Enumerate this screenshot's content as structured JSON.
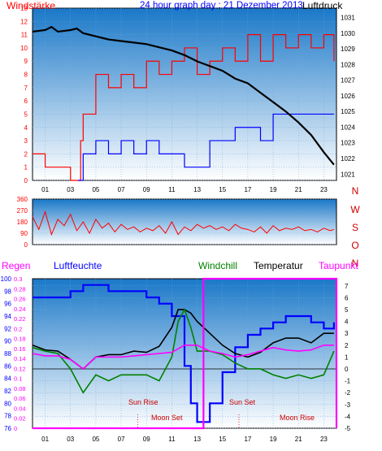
{
  "colors": {
    "wind_speed": "#ff0000",
    "wind_speed_min": "#0000ff",
    "pressure": "#000000",
    "wind_dir": "#ff0000",
    "rain": "#ff00ff",
    "humidity": "#0000ff",
    "windchill": "#008000",
    "temperature": "#000000",
    "dewpoint": "#ff00ff",
    "sky_top": "#1a78c8",
    "sky_bottom": "#ffffff"
  },
  "chart_data": [
    {
      "type": "line",
      "title": "24 hour graph day : 21 Dezember 2013",
      "left_label": "Windstärke",
      "right_label": "Luftdruck",
      "x_ticks": [
        "01",
        "03",
        "05",
        "07",
        "09",
        "11",
        "13",
        "15",
        "17",
        "19",
        "21",
        "23"
      ],
      "xlim": [
        0,
        24
      ],
      "y_left_ticks": [
        "0",
        "1",
        "2",
        "3",
        "4",
        "5",
        "6",
        "7",
        "8",
        "9",
        "10",
        "11",
        "12",
        "13"
      ],
      "ylim_left": [
        0,
        13
      ],
      "y_right_ticks": [
        "1021",
        "1022",
        "1023",
        "1024",
        "1025",
        "1026",
        "1027",
        "1028",
        "1029",
        "1030",
        "1031"
      ],
      "ylim_right": [
        1020.6,
        1031.6
      ],
      "series": [
        {
          "role": "wind_gust",
          "color_key": "wind_speed",
          "axis": "left",
          "x": [
            0,
            1,
            2,
            3,
            3.6,
            3.8,
            4,
            5,
            6,
            7,
            8,
            9,
            10,
            11,
            12,
            13,
            14,
            15,
            16,
            17,
            18,
            19,
            20,
            21,
            22,
            23,
            23.8
          ],
          "y": [
            2,
            1,
            1,
            0,
            0,
            3,
            5,
            8,
            7,
            8,
            7,
            9,
            8,
            9,
            10,
            8,
            9,
            10,
            9,
            11,
            9,
            11,
            10,
            11,
            10,
            11,
            9
          ]
        },
        {
          "role": "wind_avg",
          "color_key": "wind_speed_min",
          "axis": "left",
          "x": [
            3.6,
            4,
            5,
            6,
            7,
            8,
            9,
            10,
            11,
            12,
            13,
            14,
            15,
            16,
            17,
            18,
            19,
            20,
            21,
            22,
            23,
            23.8
          ],
          "y": [
            0,
            2,
            3,
            2,
            3,
            2,
            3,
            2,
            2,
            1,
            1,
            3,
            3,
            4,
            4,
            3,
            5,
            5,
            5,
            5,
            5,
            5
          ]
        },
        {
          "role": "pressure",
          "color_key": "pressure",
          "axis": "right",
          "x": [
            0,
            1,
            1.5,
            2,
            3,
            3.5,
            4,
            5,
            6,
            7,
            8,
            9,
            10,
            11,
            12,
            13,
            14,
            15,
            16,
            17,
            18,
            19,
            20,
            21,
            22,
            23,
            23.8
          ],
          "y": [
            1030.1,
            1030.2,
            1030.4,
            1030.1,
            1030.2,
            1030.3,
            1030.0,
            1029.8,
            1029.6,
            1029.5,
            1029.4,
            1029.3,
            1029.1,
            1028.9,
            1028.6,
            1028.2,
            1027.9,
            1027.6,
            1027.1,
            1026.8,
            1026.2,
            1025.6,
            1025.0,
            1024.3,
            1023.5,
            1022.4,
            1021.6
          ]
        }
      ]
    },
    {
      "type": "line",
      "y_left_ticks": [
        "0",
        "90",
        "180",
        "270",
        "360"
      ],
      "ylim": [
        0,
        360
      ],
      "y_right_labels": [
        "N",
        "W",
        "S",
        "O",
        "N"
      ],
      "x_ticks": [],
      "series": [
        {
          "role": "wind_direction",
          "color_key": "wind_dir",
          "x": [
            0,
            0.5,
            1,
            1.5,
            2,
            2.5,
            3,
            3.5,
            4,
            4.5,
            5,
            5.5,
            6,
            6.5,
            7,
            7.5,
            8,
            8.5,
            9,
            9.5,
            10,
            10.5,
            11,
            11.5,
            12,
            12.5,
            13,
            13.5,
            14,
            14.5,
            15,
            15.5,
            16,
            16.5,
            17,
            17.5,
            18,
            18.5,
            19,
            19.5,
            20,
            20.5,
            21,
            21.5,
            22,
            22.5,
            23,
            23.5,
            23.8
          ],
          "y": [
            220,
            120,
            260,
            80,
            200,
            150,
            240,
            110,
            180,
            90,
            200,
            130,
            170,
            100,
            160,
            120,
            140,
            100,
            130,
            110,
            150,
            90,
            180,
            80,
            140,
            110,
            160,
            130,
            150,
            120,
            140,
            110,
            160,
            130,
            120,
            100,
            140,
            90,
            150,
            110,
            130,
            120,
            140,
            110,
            120,
            100,
            130,
            110,
            120
          ]
        }
      ]
    },
    {
      "type": "line",
      "left_label_1": "Regen",
      "left_label_2": "Luftfeuchte",
      "label_windchill": "Windchill",
      "label_temperature": "Temperatur",
      "label_dewpoint": "Taupunkt",
      "y_humidity_ticks": [
        "76",
        "78",
        "80",
        "82",
        "84",
        "86",
        "88",
        "90",
        "92",
        "94",
        "96",
        "98",
        "100"
      ],
      "ylim_humidity": [
        76,
        100
      ],
      "y_rain_ticks": [
        "0",
        "0.02",
        "0.04",
        "0.06",
        "0.08",
        "0.1",
        "0.12",
        "0.14",
        "0.16",
        "0.18",
        "0.2",
        "0.22",
        "0.24",
        "0.26",
        "0.28",
        "0.3"
      ],
      "ylim_rain": [
        0,
        0.3
      ],
      "y_temp_ticks": [
        "-5",
        "-4",
        "-3",
        "-2",
        "-1",
        "0",
        "1",
        "2",
        "3",
        "4",
        "5",
        "6",
        "7"
      ],
      "ylim_temp": [
        -5,
        7.6
      ],
      "x_ticks": [
        "01",
        "03",
        "05",
        "07",
        "09",
        "11",
        "13",
        "15",
        "17",
        "19",
        "21",
        "23"
      ],
      "xlim": [
        0,
        24
      ],
      "annotations": [
        "Sun Rise",
        "Moon Set",
        "Sun Set",
        "Moon Rise"
      ],
      "series": [
        {
          "role": "humidity",
          "color_key": "humidity",
          "axis": "humidity",
          "x": [
            0,
            1,
            2,
            3,
            4,
            5,
            6,
            7,
            8,
            9,
            10,
            11,
            12,
            12.5,
            13,
            13.5,
            14,
            15,
            16,
            17,
            18,
            19,
            20,
            21,
            22,
            23,
            23.8
          ],
          "y": [
            97,
            97,
            97,
            98,
            99,
            99,
            98,
            98,
            98,
            97,
            96,
            94,
            86,
            80,
            77,
            77,
            80,
            85,
            89,
            91,
            92,
            93,
            94,
            94,
            93,
            92,
            93
          ]
        },
        {
          "role": "temperature",
          "color_key": "temperature",
          "axis": "temp",
          "x": [
            0,
            1,
            2,
            3,
            4,
            5,
            6,
            7,
            8,
            9,
            10,
            11,
            11.5,
            12,
            12.5,
            13,
            13.5,
            14,
            15,
            16,
            17,
            18,
            19,
            20,
            21,
            22,
            23,
            23.8
          ],
          "y": [
            2.0,
            1.6,
            1.5,
            0.8,
            0,
            1.0,
            1.2,
            1.2,
            1.5,
            1.4,
            1.9,
            3.5,
            5.0,
            5.0,
            4.7,
            4.0,
            3.5,
            3.0,
            2.0,
            1.3,
            1.0,
            1.4,
            2.2,
            2.6,
            2.6,
            2.2,
            3.0,
            3.0
          ]
        },
        {
          "role": "windchill",
          "color_key": "windchill",
          "axis": "temp",
          "x": [
            0,
            1,
            2,
            3,
            4,
            5,
            6,
            7,
            8,
            9,
            10,
            11,
            11.5,
            12,
            12.5,
            13,
            14,
            15,
            16,
            17,
            18,
            19,
            20,
            21,
            22,
            23,
            23.8
          ],
          "y": [
            1.8,
            1.5,
            1.3,
            0,
            -2,
            -0.5,
            -1,
            -0.5,
            -0.5,
            -0.5,
            -1,
            1,
            4,
            5,
            3.5,
            1.5,
            1.5,
            1.2,
            0.5,
            0,
            0,
            -0.5,
            -0.8,
            -0.5,
            -0.8,
            -0.5,
            1.5
          ]
        },
        {
          "role": "dewpoint",
          "color_key": "dewpoint",
          "axis": "temp",
          "x": [
            0,
            1,
            2,
            3,
            4,
            5,
            6,
            7,
            8,
            9,
            10,
            11,
            12,
            13,
            14,
            15,
            16,
            17,
            18,
            19,
            20,
            21,
            22,
            23,
            23.8
          ],
          "y": [
            1.3,
            1.1,
            1.1,
            0.8,
            0,
            1.0,
            1.0,
            1.0,
            1.1,
            1.2,
            1.3,
            1.4,
            2.0,
            2.0,
            1.5,
            1.3,
            1.0,
            1.2,
            1.5,
            1.8,
            1.6,
            1.5,
            1.6,
            2.0,
            2.0
          ]
        },
        {
          "role": "rain",
          "color_key": "rain",
          "axis": "rain",
          "x": [
            0,
            13.5,
            13.5,
            24
          ],
          "y": [
            0,
            0,
            0.3,
            0.3
          ]
        }
      ]
    }
  ]
}
